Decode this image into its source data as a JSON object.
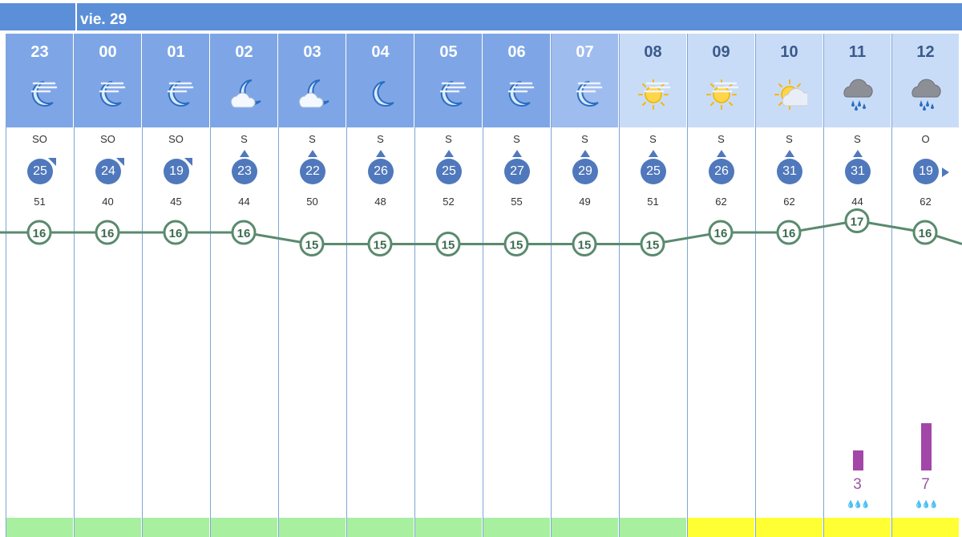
{
  "header": {
    "day": "vie. 29"
  },
  "hours": [
    {
      "hour": "23",
      "icon": "moon-cloud-icon",
      "dir": "SO",
      "wind": "25",
      "arrow": "corner",
      "gust": "51",
      "temp": 16,
      "head": "#7ea6e6",
      "color": "#fff",
      "bar": "#a8f0a0",
      "rain": null
    },
    {
      "hour": "00",
      "icon": "moon-cloud-icon",
      "dir": "SO",
      "wind": "24",
      "arrow": "corner",
      "gust": "40",
      "temp": 16,
      "head": "#7ea6e6",
      "color": "#fff",
      "bar": "#a8f0a0",
      "rain": null
    },
    {
      "hour": "01",
      "icon": "moon-cloud-icon",
      "dir": "SO",
      "wind": "19",
      "arrow": "corner",
      "gust": "45",
      "temp": 16,
      "head": "#7ea6e6",
      "color": "#fff",
      "bar": "#a8f0a0",
      "rain": null
    },
    {
      "hour": "02",
      "icon": "moon-partly-cloudy-icon",
      "dir": "S",
      "wind": "23",
      "arrow": "up",
      "gust": "44",
      "temp": 16,
      "head": "#7ea6e6",
      "color": "#fff",
      "bar": "#a8f0a0",
      "rain": null
    },
    {
      "hour": "03",
      "icon": "moon-partly-cloudy-icon",
      "dir": "S",
      "wind": "22",
      "arrow": "up",
      "gust": "50",
      "temp": 15,
      "head": "#7ea6e6",
      "color": "#fff",
      "bar": "#a8f0a0",
      "rain": null
    },
    {
      "hour": "04",
      "icon": "moon-icon",
      "dir": "S",
      "wind": "26",
      "arrow": "up",
      "gust": "48",
      "temp": 15,
      "head": "#7ea6e6",
      "color": "#fff",
      "bar": "#a8f0a0",
      "rain": null
    },
    {
      "hour": "05",
      "icon": "moon-cloud-icon",
      "dir": "S",
      "wind": "25",
      "arrow": "up",
      "gust": "52",
      "temp": 15,
      "head": "#7ea6e6",
      "color": "#fff",
      "bar": "#a8f0a0",
      "rain": null
    },
    {
      "hour": "06",
      "icon": "moon-cloud-icon",
      "dir": "S",
      "wind": "27",
      "arrow": "up",
      "gust": "55",
      "temp": 15,
      "head": "#7ea6e6",
      "color": "#fff",
      "bar": "#a8f0a0",
      "rain": null
    },
    {
      "hour": "07",
      "icon": "moon-cloud-icon",
      "dir": "S",
      "wind": "29",
      "arrow": "up",
      "gust": "49",
      "temp": 15,
      "head": "#9ebcee",
      "color": "#fff",
      "bar": "#a8f0a0",
      "rain": null
    },
    {
      "hour": "08",
      "icon": "sun-haze-icon",
      "dir": "S",
      "wind": "25",
      "arrow": "up",
      "gust": "51",
      "temp": 15,
      "head": "#c9dcf7",
      "color": "#3a5a8c",
      "bar": "#a8f0a0",
      "rain": null
    },
    {
      "hour": "09",
      "icon": "sun-haze-icon",
      "dir": "S",
      "wind": "26",
      "arrow": "up",
      "gust": "62",
      "temp": 16,
      "head": "#c9dcf7",
      "color": "#3a5a8c",
      "bar": "#ffff33",
      "rain": null
    },
    {
      "hour": "10",
      "icon": "sun-cloud-icon",
      "dir": "S",
      "wind": "31",
      "arrow": "up",
      "gust": "62",
      "temp": 16,
      "head": "#c9dcf7",
      "color": "#3a5a8c",
      "bar": "#ffff33",
      "rain": null
    },
    {
      "hour": "11",
      "icon": "rain-cloud-icon",
      "dir": "S",
      "wind": "31",
      "arrow": "up",
      "gust": "44",
      "temp": 17,
      "head": "#c9dcf7",
      "color": "#3a5a8c",
      "bar": "#ffff33",
      "rain": "3",
      "rainLevel": 3
    },
    {
      "hour": "12",
      "icon": "rain-cloud-icon",
      "dir": "O",
      "wind": "19",
      "arrow": "right",
      "gust": "62",
      "temp": 16,
      "head": "#c9dcf7",
      "color": "#3a5a8c",
      "bar": "#ffff33",
      "rain": "7",
      "rainLevel": 7
    }
  ],
  "temp_next": 15,
  "colors": {
    "line": "#5a8a6e",
    "bg": "#ffffff"
  }
}
